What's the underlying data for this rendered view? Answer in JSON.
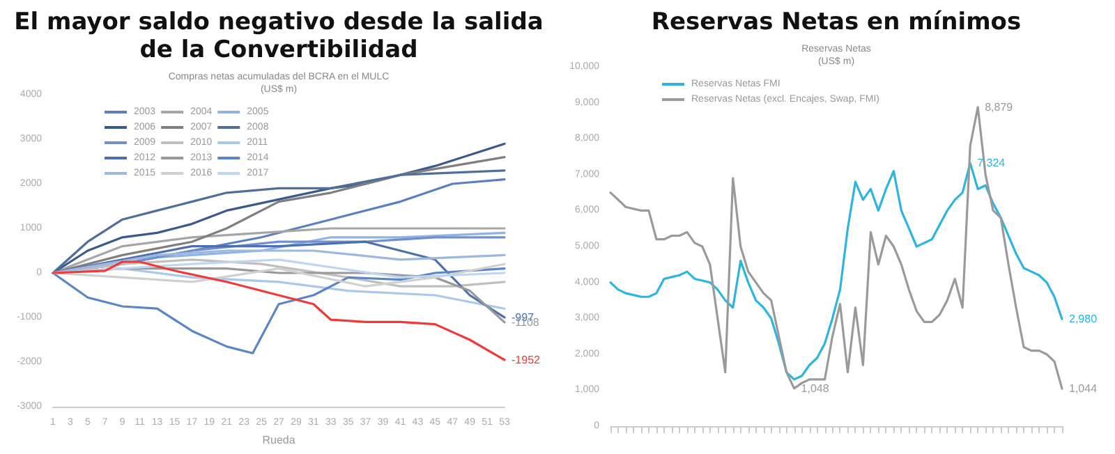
{
  "chart_data": [
    {
      "type": "line",
      "title": "El mayor saldo negativo desde la salida de la Convertibilidad",
      "subtitle": "Compras netas acumuladas del BCRA en el MULC\n(US$ m)",
      "xlabel": "Rueda",
      "xlim": [
        1,
        53
      ],
      "xticks": [
        1,
        3,
        5,
        7,
        9,
        11,
        13,
        15,
        17,
        19,
        21,
        23,
        25,
        27,
        29,
        31,
        33,
        35,
        37,
        39,
        41,
        43,
        45,
        47,
        49,
        51,
        53
      ],
      "ylim": [
        -3000,
        4000
      ],
      "yticks": [
        -3000,
        -2000,
        -1000,
        0,
        1000,
        2000,
        3000,
        4000
      ],
      "grid": false,
      "legend": "top left",
      "marker": "none",
      "line_style": "solid",
      "series": [
        {
          "name": "2003",
          "color": "#5b7fc0",
          "x": [
            1,
            9,
            17,
            25,
            33,
            41,
            47,
            53
          ],
          "values": [
            0,
            200,
            500,
            800,
            1200,
            1600,
            2000,
            2100
          ]
        },
        {
          "name": "2004",
          "color": "#a6a6a6",
          "x": [
            1,
            9,
            17,
            25,
            33,
            53
          ],
          "values": [
            0,
            600,
            800,
            900,
            1000,
            1000
          ]
        },
        {
          "name": "2005",
          "color": "#8fb4e3",
          "x": [
            1,
            9,
            17,
            25,
            33,
            41,
            53
          ],
          "values": [
            0,
            300,
            400,
            500,
            800,
            800,
            900
          ]
        },
        {
          "name": "2006",
          "color": "#3b5a8c",
          "x": [
            1,
            5,
            9,
            13,
            17,
            21,
            27,
            33,
            37,
            45,
            53
          ],
          "values": [
            0,
            500,
            800,
            900,
            1100,
            1400,
            1650,
            1900,
            2000,
            2400,
            2900
          ]
        },
        {
          "name": "2007",
          "color": "#7f7f7f",
          "x": [
            1,
            9,
            17,
            21,
            27,
            33,
            41,
            53
          ],
          "values": [
            0,
            400,
            700,
            1000,
            1600,
            1800,
            2200,
            2600
          ]
        },
        {
          "name": "2008",
          "color": "#4f6f9a",
          "x": [
            1,
            5,
            9,
            13,
            17,
            21,
            27,
            33,
            41,
            53
          ],
          "values": [
            0,
            700,
            1200,
            1400,
            1600,
            1800,
            1900,
            1900,
            2200,
            2300
          ]
        },
        {
          "name": "2009",
          "color": "#6f8fcf",
          "x": [
            1,
            9,
            17,
            27,
            37,
            45,
            53
          ],
          "values": [
            0,
            200,
            500,
            700,
            700,
            800,
            800
          ]
        },
        {
          "name": "2010",
          "color": "#bfbfbf",
          "x": [
            1,
            9,
            17,
            25,
            35,
            41,
            47,
            53
          ],
          "values": [
            0,
            200,
            300,
            200,
            -100,
            -300,
            -300,
            -200
          ]
        },
        {
          "name": "2011",
          "color": "#a9c8ea",
          "x": [
            1,
            9,
            17,
            27,
            35,
            45,
            53
          ],
          "values": [
            0,
            100,
            -100,
            -200,
            -400,
            -500,
            -800
          ]
        },
        {
          "name": "2012",
          "color": "#4d6fb0",
          "x": [
            1,
            9,
            17,
            27,
            37,
            45,
            49,
            53
          ],
          "values": [
            0,
            300,
            600,
            600,
            700,
            300,
            -500,
            -997
          ],
          "value_labels": [
            null,
            null,
            null,
            null,
            null,
            null,
            null,
            "-997"
          ]
        },
        {
          "name": "2013",
          "color": "#999999",
          "x": [
            1,
            9,
            21,
            27,
            37,
            45,
            49,
            53
          ],
          "values": [
            0,
            100,
            100,
            0,
            0,
            -100,
            -400,
            -1108
          ],
          "value_labels": [
            null,
            null,
            null,
            null,
            null,
            null,
            null,
            "-1108"
          ]
        },
        {
          "name": "2014",
          "color": "#5a86c5",
          "x": [
            1,
            5,
            9,
            13,
            17,
            21,
            24,
            27,
            31,
            35,
            41,
            45,
            53
          ],
          "values": [
            0,
            -550,
            -750,
            -800,
            -1300,
            -1650,
            -1800,
            -700,
            -500,
            -100,
            -150,
            0,
            100
          ]
        },
        {
          "name": "2015",
          "color": "#9db8e0",
          "x": [
            1,
            13,
            21,
            31,
            41,
            53
          ],
          "values": [
            0,
            400,
            500,
            500,
            300,
            400
          ]
        },
        {
          "name": "2016",
          "color": "#d0d0d0",
          "x": [
            1,
            9,
            17,
            27,
            37,
            45,
            53
          ],
          "values": [
            0,
            -100,
            -200,
            100,
            -300,
            -100,
            200
          ]
        },
        {
          "name": "2017",
          "color": "#c0d6f0",
          "x": [
            1,
            17,
            27,
            41,
            53
          ],
          "values": [
            0,
            200,
            300,
            -100,
            0
          ]
        },
        {
          "color": "#f03a3a",
          "x": [
            1,
            7,
            9,
            11,
            15,
            21,
            27,
            31,
            33,
            37,
            41,
            45,
            49,
            53
          ],
          "values": [
            0,
            50,
            250,
            250,
            50,
            -200,
            -500,
            -700,
            -1050,
            -1100,
            -1100,
            -1150,
            -1500,
            -1952
          ],
          "value_labels": [
            null,
            null,
            null,
            null,
            null,
            null,
            null,
            null,
            null,
            null,
            null,
            null,
            null,
            "-1952"
          ]
        }
      ]
    },
    {
      "type": "line",
      "title": "Reservas Netas en mínimos",
      "subtitle": "Reservas Netas\n(US$ m)",
      "categories": [
        null,
        null,
        null,
        null,
        null,
        null,
        null,
        null,
        null,
        null,
        null,
        null,
        null,
        null,
        null,
        null,
        null,
        null,
        null,
        null,
        null,
        null,
        null,
        null,
        null,
        null,
        null,
        null,
        null,
        null,
        null,
        null,
        null,
        null,
        null,
        null,
        null,
        null,
        null,
        null,
        null,
        null,
        null,
        null,
        null,
        null,
        null,
        null,
        null,
        null,
        null,
        null,
        null,
        null,
        null,
        null,
        null,
        null,
        null,
        null
      ],
      "ylim": [
        0,
        10000
      ],
      "yticks": [
        0,
        {
          "value": 1000,
          "label": "1,000"
        },
        {
          "value": 2000,
          "label": "2,000"
        },
        {
          "value": 3000,
          "label": "3,000"
        },
        {
          "value": 4000,
          "label": "4,000"
        },
        {
          "value": 5000,
          "label": "5,000"
        },
        {
          "value": 6000,
          "label": "6,000"
        },
        {
          "value": 7000,
          "label": "7,000"
        },
        {
          "value": 8000,
          "label": "8,000"
        },
        {
          "value": 9000,
          "label": "9,000"
        },
        {
          "value": 10000,
          "label": "10,000"
        }
      ],
      "tick_labels": "y",
      "grid": false,
      "legend": "top left",
      "marker": "none",
      "line_style": "solid",
      "series": [
        {
          "name": "Reservas Netas FMI",
          "color": "#2bb5e0",
          "values": [
            4000,
            3800,
            3700,
            3650,
            3600,
            3600,
            3700,
            4100,
            4150,
            4200,
            4300,
            4100,
            4050,
            4000,
            3800,
            3500,
            3300,
            4600,
            4000,
            3500,
            3300,
            3000,
            2300,
            1500,
            1300,
            1400,
            1700,
            1900,
            2300,
            3000,
            3800,
            5500,
            6800,
            6300,
            6600,
            6000,
            6600,
            7100,
            6000,
            5500,
            5000,
            5100,
            5200,
            5600,
            6000,
            6300,
            6500,
            7324,
            6600,
            6700,
            6200,
            5800,
            5300,
            4800,
            4400,
            4300,
            4200,
            4000,
            3600,
            2980
          ],
          "value_labels": [
            null,
            null,
            null,
            null,
            null,
            null,
            null,
            null,
            null,
            null,
            null,
            null,
            null,
            null,
            null,
            null,
            null,
            null,
            null,
            null,
            null,
            null,
            null,
            null,
            null,
            null,
            null,
            null,
            null,
            null,
            null,
            null,
            null,
            null,
            null,
            null,
            null,
            null,
            null,
            null,
            null,
            null,
            null,
            null,
            null,
            null,
            null,
            "7,324",
            null,
            null,
            null,
            null,
            null,
            null,
            null,
            null,
            null,
            null,
            null,
            "2,980"
          ]
        },
        {
          "name": "Reservas Netas (excl. Encajes, Swap, FMI)",
          "color": "#9a9a9a",
          "values": [
            6500,
            6300,
            6100,
            6050,
            6000,
            6000,
            5200,
            5200,
            5300,
            5300,
            5400,
            5100,
            5000,
            4500,
            3000,
            1500,
            6900,
            5000,
            4300,
            4000,
            3700,
            3500,
            2500,
            1500,
            1048,
            1200,
            1300,
            1300,
            1300,
            2500,
            3400,
            1500,
            3300,
            1700,
            5400,
            4500,
            5300,
            5000,
            4500,
            3800,
            3200,
            2900,
            2900,
            3100,
            3500,
            4100,
            3300,
            7800,
            8879,
            7000,
            6000,
            5800,
            4500,
            3300,
            2200,
            2100,
            2100,
            2000,
            1800,
            1044
          ],
          "value_labels": [
            null,
            null,
            null,
            null,
            null,
            null,
            null,
            null,
            null,
            null,
            null,
            null,
            null,
            null,
            null,
            null,
            null,
            null,
            null,
            null,
            null,
            null,
            null,
            null,
            "1,048",
            null,
            null,
            null,
            null,
            null,
            null,
            null,
            null,
            null,
            null,
            null,
            null,
            null,
            null,
            null,
            null,
            null,
            null,
            null,
            null,
            null,
            null,
            null,
            "8,879",
            null,
            null,
            null,
            null,
            null,
            null,
            null,
            null,
            null,
            null,
            "1,044"
          ]
        }
      ]
    }
  ]
}
